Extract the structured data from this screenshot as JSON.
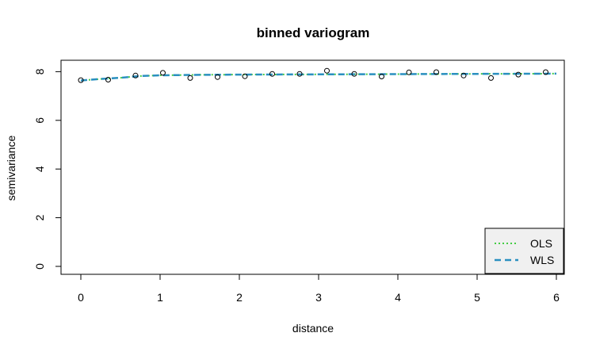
{
  "chart_data": {
    "type": "scatter",
    "title": "binned variogram",
    "xlabel": "distance",
    "ylabel": "semivariance",
    "xlim": [
      0,
      6
    ],
    "ylim": [
      0,
      8
    ],
    "x_ticks": [
      "0",
      "1",
      "2",
      "3",
      "4",
      "5",
      "6"
    ],
    "y_ticks": [
      "0",
      "2",
      "4",
      "6",
      "8"
    ],
    "grid": false,
    "points": {
      "x": [
        0.0,
        0.345,
        0.69,
        1.035,
        1.38,
        1.725,
        2.07,
        2.415,
        2.76,
        3.105,
        3.45,
        3.795,
        4.14,
        4.485,
        4.83,
        5.175,
        5.52,
        5.865
      ],
      "y": [
        7.65,
        7.67,
        7.84,
        7.95,
        7.74,
        7.78,
        7.81,
        7.91,
        7.91,
        8.04,
        7.91,
        7.8,
        7.97,
        7.98,
        7.84,
        7.74,
        7.88,
        7.98
      ]
    },
    "series": [
      {
        "name": "OLS",
        "style": "dotted",
        "color": "#44cc44",
        "x": [
          0,
          0.25,
          0.5,
          0.75,
          1.0,
          1.5,
          2.0,
          3.0,
          4.0,
          5.0,
          6.0
        ],
        "y": [
          7.64,
          7.7,
          7.75,
          7.82,
          7.85,
          7.87,
          7.88,
          7.89,
          7.9,
          7.91,
          7.92
        ]
      },
      {
        "name": "WLS",
        "style": "dashed",
        "color": "#2a8fc0",
        "x": [
          0,
          0.25,
          0.5,
          0.75,
          1.0,
          1.5,
          2.0,
          3.0,
          4.0,
          5.0,
          6.0
        ],
        "y": [
          7.64,
          7.7,
          7.75,
          7.82,
          7.85,
          7.87,
          7.88,
          7.89,
          7.9,
          7.91,
          7.92
        ]
      }
    ],
    "legend": {
      "position": "bottom-right",
      "background": "#f0f0f0"
    }
  }
}
